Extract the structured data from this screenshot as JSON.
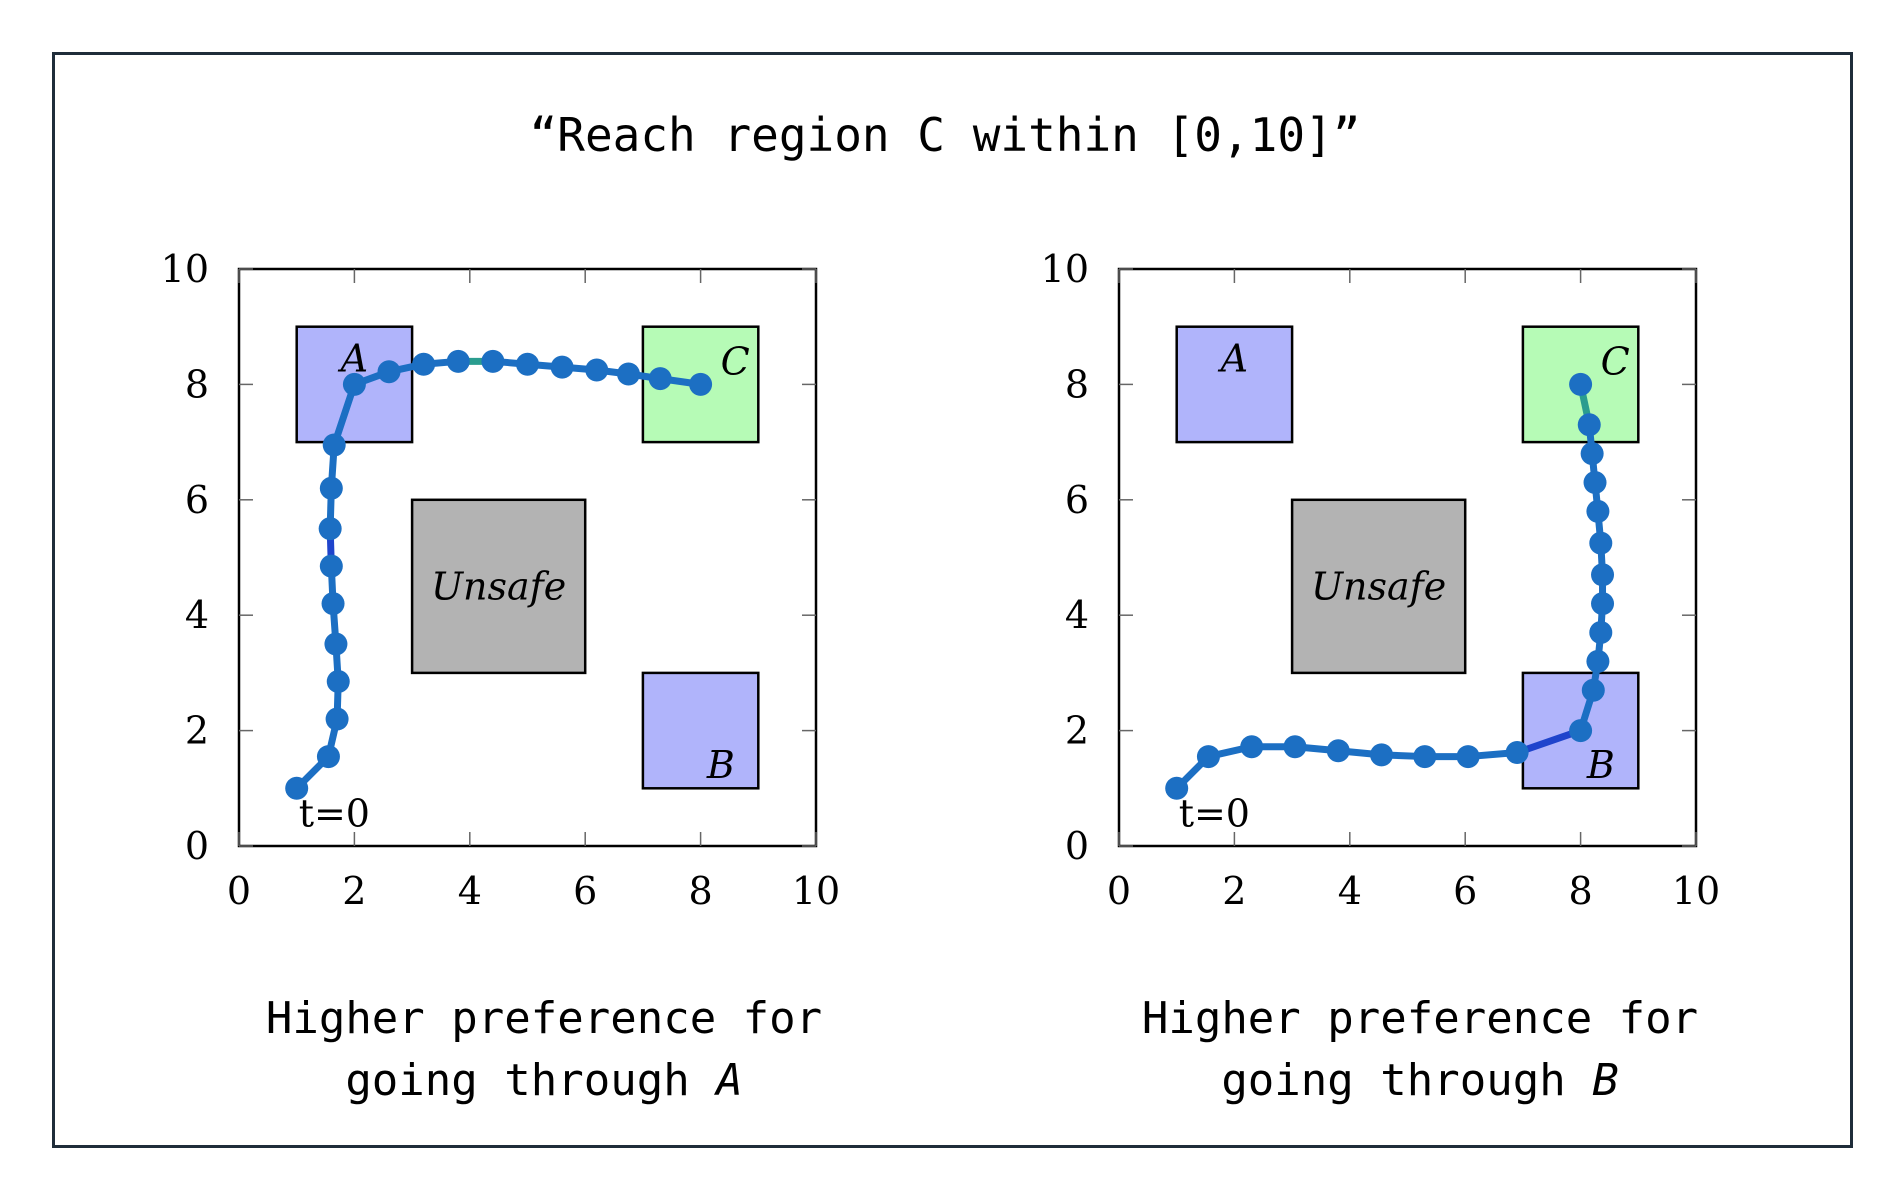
{
  "title": "“Reach region C within [0,10]”",
  "colors": {
    "frame": "#1f2d3a",
    "region_ab": "#b0b4fb",
    "region_c": "#b6fbb6",
    "unsafe": "#b3b3b3",
    "trajectory": "#1c6fc3",
    "segment_to_region": "#1f44cc",
    "segment_into_c": "#2a9d8f"
  },
  "chart_data": [
    {
      "type": "scatter",
      "xlim": [
        0,
        10
      ],
      "ylim": [
        0,
        10
      ],
      "xticks": [
        0,
        2,
        4,
        6,
        8,
        10
      ],
      "yticks": [
        0,
        2,
        4,
        6,
        8,
        10
      ],
      "grid": false,
      "regions": [
        {
          "name": "A",
          "x": [
            1,
            3
          ],
          "y": [
            7,
            9
          ],
          "color": "#b0b4fb",
          "label_pos": [
            2,
            8.45
          ]
        },
        {
          "name": "B",
          "x": [
            7,
            9
          ],
          "y": [
            1,
            3
          ],
          "color": "#b0b4fb",
          "label_pos": [
            8.35,
            1.4
          ]
        },
        {
          "name": "C",
          "x": [
            7,
            9
          ],
          "y": [
            7,
            9
          ],
          "color": "#b6fbb6",
          "label_pos": [
            8.6,
            8.4
          ]
        },
        {
          "name": "Unsafe",
          "x": [
            3,
            6
          ],
          "y": [
            3,
            6
          ],
          "color": "#b3b3b3",
          "label_pos": [
            4.5,
            4.5
          ]
        }
      ],
      "start_label": "t=0",
      "highlight_segment_index": 6,
      "final_segment_index": 13,
      "trajectory": {
        "x": [
          1.0,
          1.55,
          1.7,
          1.72,
          1.68,
          1.63,
          1.6,
          1.58,
          1.6,
          1.65,
          2.0,
          2.6,
          3.2,
          3.8,
          4.4,
          5.0,
          5.6,
          6.2,
          6.75,
          7.3,
          8.0
        ],
        "y": [
          1.0,
          1.55,
          2.2,
          2.85,
          3.5,
          4.2,
          4.85,
          5.5,
          6.2,
          6.95,
          8.0,
          8.22,
          8.35,
          8.4,
          8.4,
          8.35,
          8.3,
          8.25,
          8.18,
          8.1,
          8.0
        ]
      },
      "caption_line1": "Higher preference for",
      "caption_line2_prefix": "going through ",
      "caption_region": "A"
    },
    {
      "type": "scatter",
      "xlim": [
        0,
        10
      ],
      "ylim": [
        0,
        10
      ],
      "xticks": [
        0,
        2,
        4,
        6,
        8,
        10
      ],
      "yticks": [
        0,
        2,
        4,
        6,
        8,
        10
      ],
      "grid": false,
      "regions": [
        {
          "name": "A",
          "x": [
            1,
            3
          ],
          "y": [
            7,
            9
          ],
          "color": "#b0b4fb",
          "label_pos": [
            2,
            8.45
          ]
        },
        {
          "name": "B",
          "x": [
            7,
            9
          ],
          "y": [
            1,
            3
          ],
          "color": "#b0b4fb",
          "label_pos": [
            8.35,
            1.4
          ]
        },
        {
          "name": "C",
          "x": [
            7,
            9
          ],
          "y": [
            7,
            9
          ],
          "color": "#b6fbb6",
          "label_pos": [
            8.6,
            8.4
          ]
        },
        {
          "name": "Unsafe",
          "x": [
            3,
            6
          ],
          "y": [
            3,
            6
          ],
          "color": "#b3b3b3",
          "label_pos": [
            4.5,
            4.5
          ]
        }
      ],
      "start_label": "t=0",
      "highlight_segment_index": 8,
      "final_segment_index": 19,
      "trajectory": {
        "x": [
          1.0,
          1.55,
          2.3,
          3.05,
          3.8,
          4.55,
          5.3,
          6.05,
          6.9,
          8.0,
          8.22,
          8.3,
          8.35,
          8.38,
          8.38,
          8.35,
          8.3,
          8.25,
          8.2,
          8.15,
          8.0
        ],
        "y": [
          1.0,
          1.55,
          1.72,
          1.72,
          1.65,
          1.58,
          1.55,
          1.55,
          1.62,
          2.0,
          2.7,
          3.2,
          3.7,
          4.2,
          4.7,
          5.25,
          5.8,
          6.3,
          6.8,
          7.3,
          8.0
        ]
      },
      "caption_line1": "Higher preference for",
      "caption_line2_prefix": "going through ",
      "caption_region": "B"
    }
  ]
}
